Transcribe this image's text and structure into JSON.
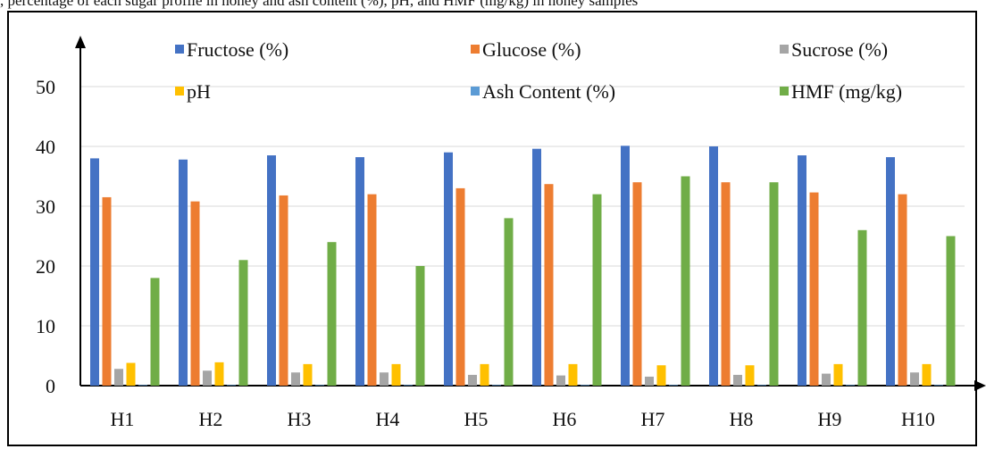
{
  "caption": ", percentage of each sugar profile in honey and ash content (%), pH, and HMF (mg/kg) in honey samples",
  "chart_data": {
    "type": "bar",
    "title": "",
    "xlabel": "",
    "ylabel": "",
    "ylim": [
      0,
      55
    ],
    "yticks": [
      0,
      10,
      20,
      30,
      40,
      50
    ],
    "grid": true,
    "legend_position": "top",
    "categories": [
      "H1",
      "H2",
      "H3",
      "H4",
      "H5",
      "H6",
      "H7",
      "H8",
      "H9",
      "H10"
    ],
    "series": [
      {
        "name": "Fructose (%)",
        "color": "#4472C4",
        "values": [
          38.0,
          37.8,
          38.5,
          38.2,
          39.0,
          39.6,
          40.1,
          40.0,
          38.5,
          38.2
        ]
      },
      {
        "name": "Glucose (%)",
        "color": "#ED7D31",
        "values": [
          31.5,
          30.8,
          31.8,
          32.0,
          33.0,
          33.7,
          34.0,
          34.0,
          32.3,
          32.0
        ]
      },
      {
        "name": "Sucrose (%)",
        "color": "#A5A5A5",
        "values": [
          2.8,
          2.5,
          2.2,
          2.2,
          1.8,
          1.7,
          1.5,
          1.8,
          2.0,
          2.2
        ]
      },
      {
        "name": "pH",
        "color": "#FFC000",
        "values": [
          3.8,
          3.9,
          3.6,
          3.6,
          3.6,
          3.6,
          3.4,
          3.4,
          3.6,
          3.6
        ]
      },
      {
        "name": "Ash Content (%)",
        "color": "#5B9BD5",
        "values": [
          0.1,
          0.1,
          0.1,
          0.1,
          0.1,
          0.1,
          0.1,
          0.1,
          0.1,
          0.1
        ]
      },
      {
        "name": "HMF (mg/kg)",
        "color": "#70AD47",
        "values": [
          18.0,
          21.0,
          24.0,
          20.0,
          28.0,
          32.0,
          35.0,
          34.0,
          26.0,
          25.0
        ]
      }
    ]
  }
}
